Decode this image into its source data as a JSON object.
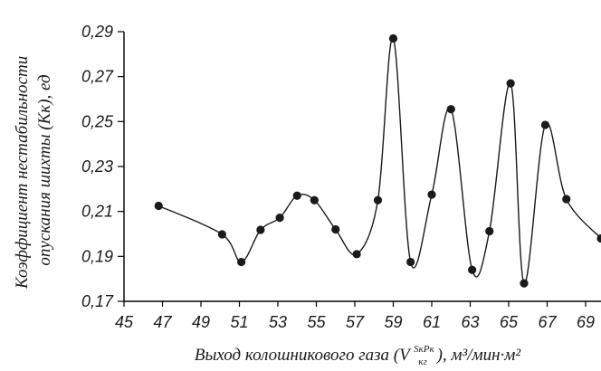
{
  "chart_data": {
    "type": "line",
    "title": "",
    "xlabel_line": "Выход колошникового газа (V",
    "xlabel_sup": "SкPк",
    "xlabel_sub": "кг",
    "xlabel_units": "), м³/мин·м²",
    "ylabel_line1": "Коэффициент нестабильности",
    "ylabel_line2": "опускания шихты (Kк), ед",
    "xlim": [
      45,
      69.8
    ],
    "ylim": [
      0.17,
      0.29
    ],
    "x_ticks": [
      45,
      47,
      49,
      51,
      53,
      55,
      57,
      59,
      61,
      63,
      65,
      67,
      69
    ],
    "y_ticks": [
      0.17,
      0.19,
      0.21,
      0.23,
      0.25,
      0.27,
      0.29
    ],
    "y_tick_labels": [
      "0,17",
      "0,19",
      "0,21",
      "0,23",
      "0,25",
      "0,27",
      "0,29"
    ],
    "grid": false,
    "colors": {
      "line": "#1a1a1a",
      "marker": "#1a1a1a",
      "axis": "#000000"
    },
    "series": [
      {
        "x": [
          46.8,
          50.1,
          51.1,
          52.1,
          53.1,
          54.0,
          54.9,
          56.0,
          57.1,
          58.2,
          59.0,
          59.9,
          61.0,
          62.0,
          63.1,
          64.0,
          65.1,
          65.8,
          66.9,
          68.0,
          69.8
        ],
        "y": [
          0.2125,
          0.1998,
          0.1875,
          0.2018,
          0.2072,
          0.217,
          0.215,
          0.202,
          0.191,
          0.215,
          0.287,
          0.1875,
          0.2175,
          0.2555,
          0.184,
          0.2012,
          0.267,
          0.178,
          0.2485,
          0.2155,
          0.198
        ]
      }
    ]
  }
}
